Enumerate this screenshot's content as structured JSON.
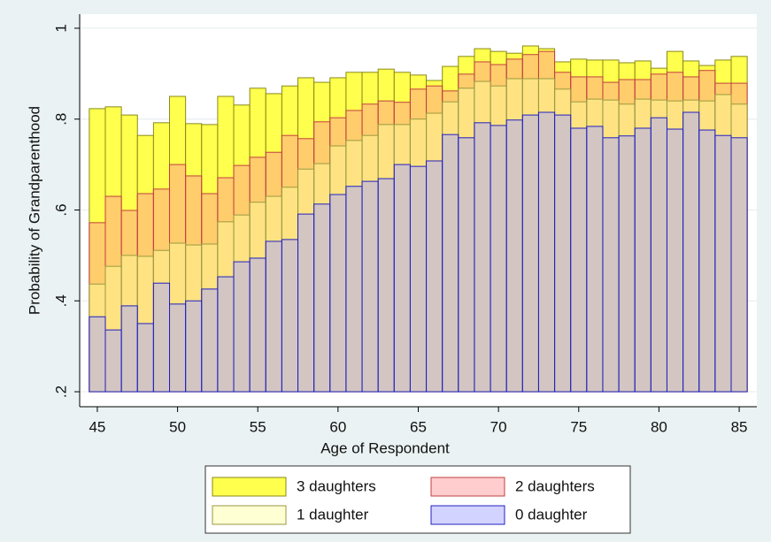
{
  "chart_data": {
    "type": "overlaid_bar",
    "xlabel": "Age of Respondent",
    "ylabel": "Probability of Grandparenthood",
    "x": [
      45,
      46,
      47,
      48,
      49,
      50,
      51,
      52,
      53,
      54,
      55,
      56,
      57,
      58,
      59,
      60,
      61,
      62,
      63,
      64,
      65,
      66,
      67,
      68,
      69,
      70,
      71,
      72,
      73,
      74,
      75,
      76,
      77,
      78,
      79,
      80,
      81,
      82,
      83,
      84,
      85
    ],
    "series": [
      {
        "name": "3 daughters",
        "color": "#ffff4d",
        "edgecolor": "#8a8a1a",
        "values": [
          0.823,
          0.827,
          0.809,
          0.764,
          0.792,
          0.85,
          0.79,
          0.788,
          0.85,
          0.831,
          0.868,
          0.856,
          0.873,
          0.891,
          0.881,
          0.891,
          0.903,
          0.903,
          0.91,
          0.903,
          0.897,
          0.885,
          0.916,
          0.938,
          0.955,
          0.949,
          0.945,
          0.961,
          0.955,
          0.926,
          0.932,
          0.93,
          0.93,
          0.924,
          0.928,
          0.912,
          0.949,
          0.928,
          0.918,
          0.93,
          0.938
        ]
      },
      {
        "name": "2 daughters",
        "color": "#ff9090",
        "edgecolor": "#c04040",
        "values": [
          0.572,
          0.63,
          0.599,
          0.636,
          0.646,
          0.7,
          0.675,
          0.636,
          0.671,
          0.698,
          0.716,
          0.727,
          0.764,
          0.757,
          0.794,
          0.803,
          0.819,
          0.833,
          0.84,
          0.837,
          0.866,
          0.873,
          0.862,
          0.899,
          0.926,
          0.92,
          0.932,
          0.942,
          0.949,
          0.903,
          0.893,
          0.893,
          0.881,
          0.887,
          0.887,
          0.899,
          0.903,
          0.893,
          0.907,
          0.879,
          0.879
        ]
      },
      {
        "name": "1 daughter",
        "color": "#ffffa0",
        "edgecolor": "#9a9a40",
        "values": [
          0.437,
          0.476,
          0.5,
          0.498,
          0.511,
          0.527,
          0.523,
          0.525,
          0.574,
          0.589,
          0.617,
          0.63,
          0.65,
          0.69,
          0.702,
          0.741,
          0.753,
          0.764,
          0.788,
          0.788,
          0.8,
          0.813,
          0.838,
          0.868,
          0.883,
          0.873,
          0.889,
          0.889,
          0.889,
          0.866,
          0.838,
          0.844,
          0.842,
          0.833,
          0.844,
          0.842,
          0.84,
          0.842,
          0.84,
          0.854,
          0.833
        ]
      },
      {
        "name": "0 daughter",
        "color": "#a8a8ff",
        "edgecolor": "#2020c0",
        "values": [
          0.365,
          0.336,
          0.389,
          0.35,
          0.439,
          0.393,
          0.4,
          0.426,
          0.453,
          0.486,
          0.494,
          0.531,
          0.535,
          0.591,
          0.613,
          0.634,
          0.652,
          0.663,
          0.669,
          0.7,
          0.696,
          0.708,
          0.766,
          0.759,
          0.792,
          0.786,
          0.798,
          0.809,
          0.815,
          0.809,
          0.78,
          0.784,
          0.759,
          0.763,
          0.78,
          0.803,
          0.778,
          0.815,
          0.776,
          0.764,
          0.759
        ]
      }
    ],
    "bar_base": {
      "value": 0.2,
      "label": ".2"
    },
    "xlim": [
      43.9,
      86.1
    ],
    "xticks": [
      45,
      50,
      55,
      60,
      65,
      70,
      75,
      80,
      85
    ],
    "ylim": [
      0.167,
      1.031
    ],
    "yticks": [
      {
        "value": 0.2,
        "label": ".2"
      },
      {
        "value": 0.4,
        "label": ".4"
      },
      {
        "value": 0.6,
        "label": ".6"
      },
      {
        "value": 0.8,
        "label": ".8"
      },
      1
    ],
    "grid": true,
    "legend": "bottom"
  }
}
